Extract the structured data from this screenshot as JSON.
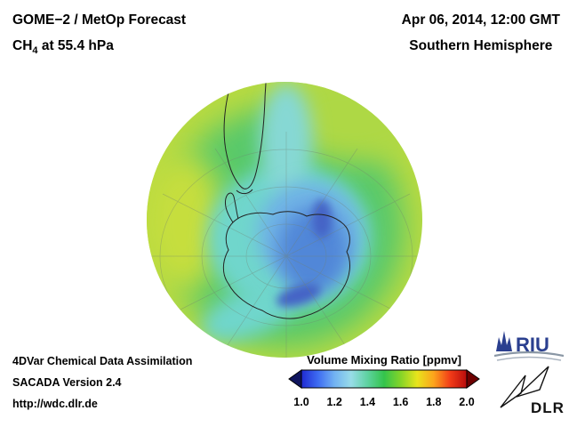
{
  "header": {
    "product": "GOME−2 / MetOp Forecast",
    "species_prefix": "CH",
    "species_sub": "4",
    "level_suffix": " at 55.4 hPa",
    "datetime": "Apr 06, 2014, 12:00 GMT",
    "hemisphere": "Southern Hemisphere"
  },
  "footer": {
    "line1": "4DVar Chemical Data Assimilation",
    "line2": "SACADA Version 2.4",
    "line3": "http://wdc.dlr.de"
  },
  "colorbar": {
    "title": "Volume Mixing Ratio [ppmv]",
    "ticks": [
      "1.0",
      "1.2",
      "1.4",
      "1.6",
      "1.8",
      "2.0"
    ],
    "range_min": "1.0",
    "range_max": "2.0",
    "gradient": [
      "#1f2ad2",
      "#3e6cf2",
      "#72b2f2",
      "#98dce8",
      "#5ed2a0",
      "#34c44c",
      "#84d428",
      "#e8e41c",
      "#fca41c",
      "#f23c18",
      "#b80c0c"
    ],
    "left_arrow_color": "#10155e",
    "right_arrow_color": "#6e0000"
  },
  "logos": {
    "riu_text": "RIU",
    "dlr_text": "DLR"
  },
  "map": {
    "projection": "southern-hemisphere-globe",
    "palette": {
      "background_yellow_green": "#b7da41",
      "midlat_green": "#58c96b",
      "yellow_band": "#c6de3c",
      "topright_light": "#aed844",
      "cyan_ring": "#6fd6cc",
      "north_cyan_band": "#86d8d4",
      "light_blue": "#6fb2e6",
      "vortex_blue": "#5187d8",
      "vortex_deep_blue": "#4464c6",
      "coastline": "#222222",
      "graticule": "#708070"
    },
    "approx_values_ppmv": {
      "mid_latitudes": 1.55,
      "subantarctic_ring": 1.4,
      "antarctic_cyan": 1.3,
      "polar_vortex_core": 1.1
    }
  }
}
